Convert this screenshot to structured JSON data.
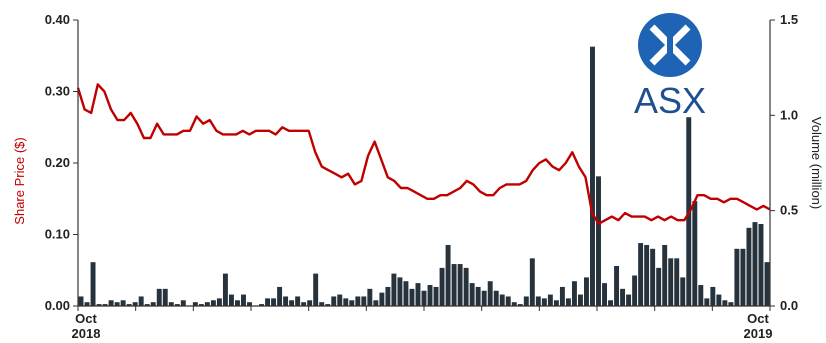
{
  "chart_data": {
    "type": "line+bar",
    "title": "",
    "x_axis": {
      "tick_labels": [
        {
          "line1": "Oct",
          "line2": "2018"
        },
        {
          "line1": "Oct",
          "line2": "2019"
        }
      ]
    },
    "y_left": {
      "label": "Share Price ($)",
      "ylim": [
        0,
        0.4
      ],
      "ticks": [
        "0.00",
        "0.10",
        "0.20",
        "0.30",
        "0.40"
      ],
      "color": "#c00000"
    },
    "y_right": {
      "label": "Volume (million)",
      "ylim": [
        0,
        1.5
      ],
      "ticks": [
        "0.0",
        "0.5",
        "1.0",
        "1.5"
      ]
    },
    "grid": false,
    "legend": "none",
    "series": [
      {
        "kind": "line",
        "axis": "left",
        "color": "#c00000",
        "values": [
          0.305,
          0.275,
          0.27,
          0.31,
          0.3,
          0.275,
          0.26,
          0.26,
          0.27,
          0.255,
          0.235,
          0.235,
          0.255,
          0.24,
          0.24,
          0.24,
          0.245,
          0.245,
          0.265,
          0.255,
          0.26,
          0.245,
          0.24,
          0.24,
          0.24,
          0.245,
          0.24,
          0.245,
          0.245,
          0.245,
          0.24,
          0.25,
          0.245,
          0.245,
          0.245,
          0.245,
          0.215,
          0.195,
          0.19,
          0.185,
          0.18,
          0.185,
          0.17,
          0.175,
          0.21,
          0.23,
          0.205,
          0.18,
          0.175,
          0.165,
          0.165,
          0.16,
          0.155,
          0.15,
          0.15,
          0.155,
          0.155,
          0.16,
          0.165,
          0.175,
          0.17,
          0.16,
          0.155,
          0.155,
          0.165,
          0.17,
          0.17,
          0.17,
          0.175,
          0.19,
          0.2,
          0.205,
          0.195,
          0.19,
          0.2,
          0.215,
          0.195,
          0.18,
          0.13,
          0.115,
          0.12,
          0.125,
          0.12,
          0.13,
          0.125,
          0.125,
          0.125,
          0.12,
          0.125,
          0.12,
          0.125,
          0.12,
          0.12,
          0.135,
          0.155,
          0.155,
          0.15,
          0.15,
          0.145,
          0.15,
          0.15,
          0.145,
          0.14,
          0.135,
          0.14,
          0.135
        ]
      },
      {
        "kind": "bar",
        "axis": "right",
        "color": "#26323c",
        "values": [
          0.05,
          0.02,
          0.23,
          0.01,
          0.01,
          0.03,
          0.02,
          0.03,
          0.01,
          0.02,
          0.05,
          0.01,
          0.02,
          0.09,
          0.09,
          0.02,
          0.01,
          0.03,
          0.0,
          0.02,
          0.01,
          0.02,
          0.03,
          0.04,
          0.17,
          0.06,
          0.03,
          0.06,
          0.02,
          0.0,
          0.01,
          0.04,
          0.04,
          0.1,
          0.05,
          0.03,
          0.05,
          0.02,
          0.03,
          0.17,
          0.02,
          0.01,
          0.05,
          0.06,
          0.04,
          0.03,
          0.05,
          0.05,
          0.09,
          0.03,
          0.07,
          0.1,
          0.17,
          0.15,
          0.13,
          0.09,
          0.12,
          0.08,
          0.11,
          0.1,
          0.2,
          0.32,
          0.22,
          0.22,
          0.2,
          0.12,
          0.1,
          0.08,
          0.13,
          0.08,
          0.06,
          0.05,
          0.02,
          0.01,
          0.05,
          0.25,
          0.05,
          0.04,
          0.06,
          0.03,
          0.1,
          0.04,
          0.13,
          0.06,
          0.15,
          1.36,
          0.68,
          0.12,
          0.03,
          0.21,
          0.09,
          0.06,
          0.16,
          0.33,
          0.32,
          0.3,
          0.2,
          0.32,
          0.25,
          0.25,
          0.15,
          0.99,
          0.55,
          0.11,
          0.04,
          0.1,
          0.06,
          0.03,
          0.02,
          0.3,
          0.3,
          0.41,
          0.44,
          0.43,
          0.23
        ]
      }
    ]
  },
  "logo": {
    "name": "asx-logo",
    "text": "ASX",
    "circle_color": "#1e63b4",
    "text_color": "#1f4f8f"
  }
}
